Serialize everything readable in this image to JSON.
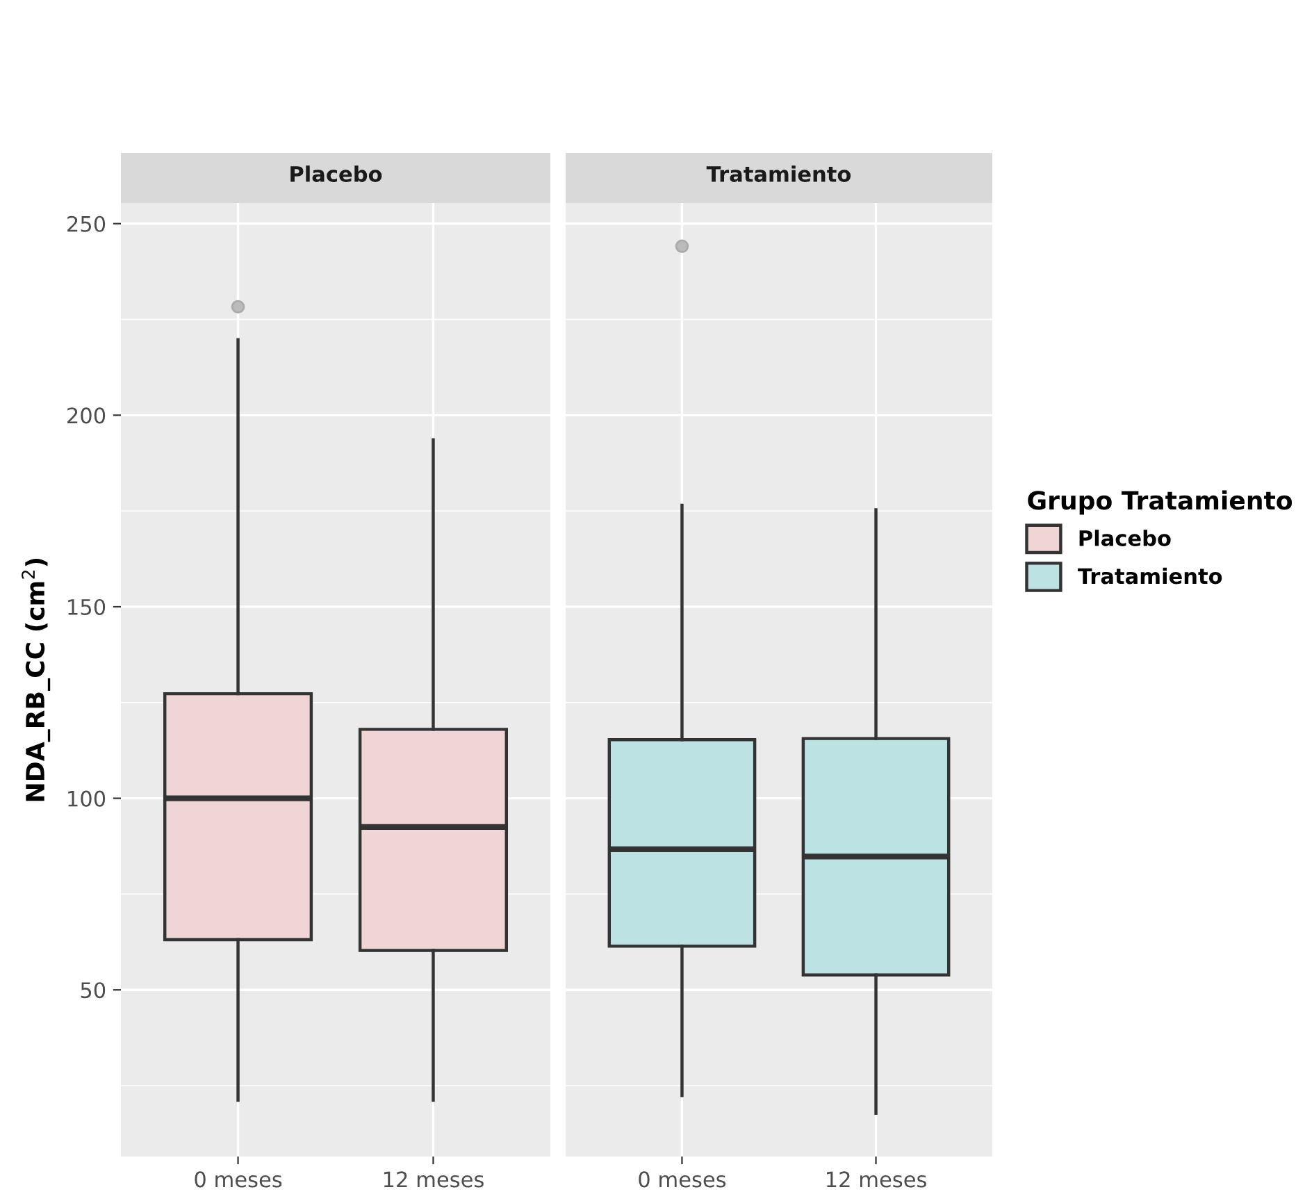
{
  "chart_data": [
    {
      "type": "box",
      "title": "Placebo",
      "ylabel": "NDA_RB_CC (cm$^{2}$)",
      "categories": [
        "0 meses",
        "12 meses"
      ],
      "ylim": [
        6.5,
        255.4
      ],
      "yticks": [
        50,
        100,
        150,
        200,
        250
      ],
      "grid": true,
      "legend": "right",
      "series": [
        {
          "name": "Placebo",
          "color": "#f0d5d6",
          "boxes": [
            {
              "low": 21.2,
              "q1": 63.1,
              "median": 100,
              "q3": 127.3,
              "high": 219.7,
              "outliers": [
                228.3
              ]
            },
            {
              "low": 21.2,
              "q1": 60.3,
              "median": 92.5,
              "q3": 118.0,
              "high": 193.6
            }
          ]
        }
      ]
    },
    {
      "type": "box",
      "title": "Tratamiento",
      "legend_title": "Grupo Tratamiento",
      "categories": [
        "0 meses",
        "12 meses"
      ],
      "ylim": [
        6.5,
        255.4
      ],
      "yticks": [
        50,
        100,
        150,
        200,
        250
      ],
      "tick_labels": "x",
      "grid": true,
      "legend": "right",
      "series": [
        {
          "name": "Tratamiento",
          "color": "#bde2e3",
          "boxes": [
            {
              "low": 22.4,
              "q1": 61.4,
              "median": 86.7,
              "q3": 115.3,
              "high": 176.5,
              "outliers": [
                244.1
              ]
            },
            {
              "low": 17.8,
              "q1": 53.9,
              "median": 84.8,
              "q3": 115.6,
              "high": 175.3
            }
          ]
        }
      ]
    }
  ]
}
